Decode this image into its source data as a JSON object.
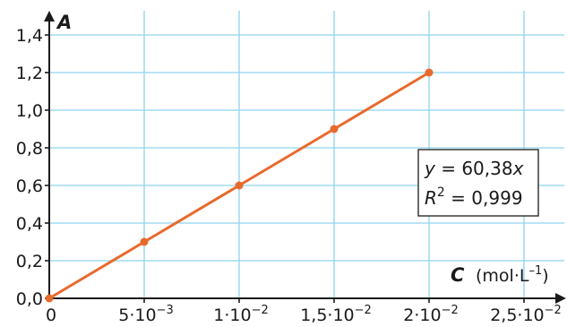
{
  "chart_data": {
    "type": "line",
    "xlabel": "C",
    "xunit": "(mol·L",
    "xunit_exp": "–1",
    "xunit_close": ")",
    "ylabel": "A",
    "xlim": [
      0,
      0.025
    ],
    "ylim": [
      0,
      1.4
    ],
    "grid": true,
    "x_ticks": [
      {
        "value": 0,
        "mant": "0",
        "exp": ""
      },
      {
        "value": 0.005,
        "mant": "5·10",
        "exp": "−3"
      },
      {
        "value": 0.01,
        "mant": "1·10",
        "exp": "−2"
      },
      {
        "value": 0.015,
        "mant": "1,5·10",
        "exp": "−2"
      },
      {
        "value": 0.02,
        "mant": "2·10",
        "exp": "−2"
      },
      {
        "value": 0.025,
        "mant": "2,5·10",
        "exp": "−2"
      }
    ],
    "y_ticks": [
      {
        "value": 0.0,
        "label": "0,0"
      },
      {
        "value": 0.2,
        "label": "0,2"
      },
      {
        "value": 0.4,
        "label": "0,4"
      },
      {
        "value": 0.6,
        "label": "0,6"
      },
      {
        "value": 0.8,
        "label": "0,8"
      },
      {
        "value": 1.0,
        "label": "1,0"
      },
      {
        "value": 1.2,
        "label": "1,2"
      },
      {
        "value": 1.4,
        "label": "1,4"
      }
    ],
    "series": [
      {
        "x": [
          0,
          0.005,
          0.01,
          0.015,
          0.02
        ],
        "y": [
          0,
          0.3,
          0.6,
          0.9,
          1.2
        ],
        "color": "#e8692d"
      }
    ],
    "annotation": {
      "line1_var": "y",
      "line1_rest": " = 60,38",
      "line1_x": "x",
      "line2_var": "R",
      "line2_exp": "2",
      "line2_rest": " = 0,999"
    },
    "grid_color": "#8fd3ee",
    "axis_color": "#1a1a1a"
  }
}
